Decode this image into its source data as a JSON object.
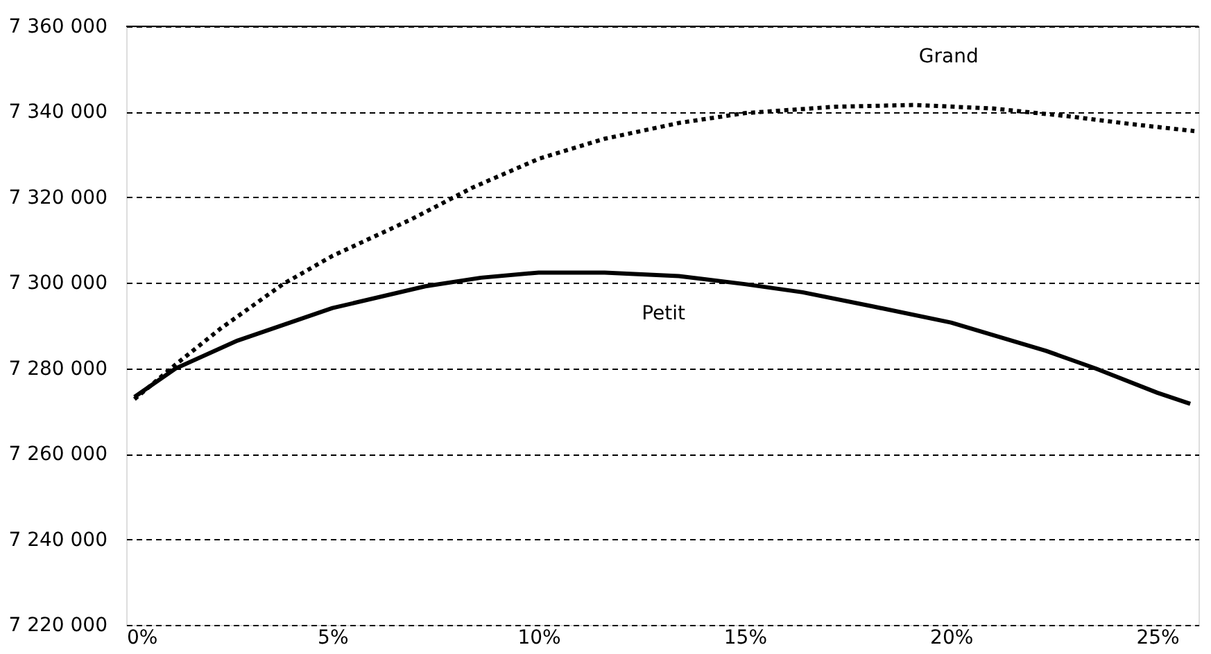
{
  "chart_data": {
    "type": "line",
    "series": [
      {
        "name": "Grand",
        "color": "#000000",
        "line_style": "dotted",
        "x": [
          0.2,
          1.2,
          2.3,
          3.8,
          5.0,
          6.9,
          8.4,
          10.0,
          11.6,
          13.4,
          15.0,
          17.2,
          19.1,
          21.0,
          22.9,
          24.4,
          25.9
        ],
        "values": [
          7272800,
          7280900,
          7289400,
          7299700,
          7306300,
          7314800,
          7322300,
          7329000,
          7333700,
          7337400,
          7339700,
          7341200,
          7341600,
          7340800,
          7338900,
          7337100,
          7335500
        ]
      },
      {
        "name": "Petit",
        "color": "#000000",
        "line_style": "solid",
        "x": [
          0.2,
          1.2,
          2.7,
          5.0,
          7.25,
          8.6,
          10.0,
          11.6,
          13.4,
          15.0,
          16.4,
          18.1,
          20.0,
          22.3,
          23.5,
          25.0,
          25.8
        ],
        "values": [
          7273300,
          7280000,
          7286500,
          7294100,
          7299200,
          7301200,
          7302400,
          7302400,
          7301600,
          7299700,
          7297800,
          7294500,
          7290700,
          7284100,
          7280000,
          7274300,
          7271700
        ]
      }
    ],
    "xlim": [
      0,
      26
    ],
    "xticks": [
      {
        "value": 0,
        "label": "0%"
      },
      {
        "value": 5,
        "label": "5%"
      },
      {
        "value": 10,
        "label": "10%"
      },
      {
        "value": 15,
        "label": "15%"
      },
      {
        "value": 20,
        "label": "20%"
      },
      {
        "value": 25,
        "label": "25%"
      }
    ],
    "ylim": [
      7220000,
      7360000
    ],
    "yticks": [
      {
        "value": 7220000,
        "label": "7 220 000"
      },
      {
        "value": 7240000,
        "label": "7 240 000"
      },
      {
        "value": 7260000,
        "label": "7 260 000"
      },
      {
        "value": 7280000,
        "label": "7 280 000"
      },
      {
        "value": 7300000,
        "label": "7 300 000"
      },
      {
        "value": 7320000,
        "label": "7 320 000"
      },
      {
        "value": 7340000,
        "label": "7 340 000"
      },
      {
        "value": 7360000,
        "label": "7 360 000"
      }
    ],
    "grid": "y",
    "marker": "none"
  }
}
